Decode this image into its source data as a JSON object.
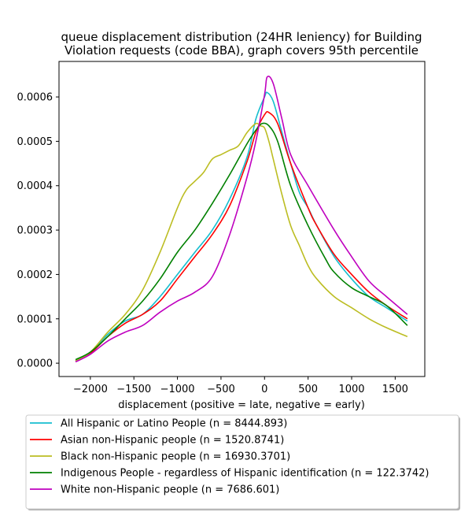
{
  "chart_data": {
    "type": "line",
    "title": "queue displacement distribution (24HR leniency) for Building\nViolation  requests (code BBA), graph covers 95th percentile",
    "xlabel": "displacement (positive = late, negative = early)",
    "ylabel": "",
    "xlim": [
      -2360,
      1840
    ],
    "ylim": [
      -3e-05,
      0.00068
    ],
    "x_ticks": [
      -2000,
      -1500,
      -1000,
      -500,
      0,
      500,
      1000,
      1500
    ],
    "x_tick_labels": [
      "−2000",
      "−1500",
      "−1000",
      "−500",
      "0",
      "500",
      "1000",
      "1500"
    ],
    "y_ticks": [
      0.0,
      0.0001,
      0.0002,
      0.0003,
      0.0004,
      0.0005,
      0.0006
    ],
    "y_tick_labels": [
      "0.0000",
      "0.0001",
      "0.0002",
      "0.0003",
      "0.0004",
      "0.0005",
      "0.0006"
    ],
    "grid": false,
    "legend_position": "bottom",
    "series": [
      {
        "name": "All Hispanic or Latino People (n = 8444.893)",
        "color": "#17becf",
        "points": [
          [
            -2170,
            5e-06
          ],
          [
            -2000,
            2.5e-05
          ],
          [
            -1800,
            6.5e-05
          ],
          [
            -1600,
            9.5e-05
          ],
          [
            -1400,
            0.00011
          ],
          [
            -1200,
            0.00015
          ],
          [
            -1000,
            0.0002
          ],
          [
            -800,
            0.00025
          ],
          [
            -600,
            0.0003
          ],
          [
            -400,
            0.00037
          ],
          [
            -200,
            0.000465
          ],
          [
            -100,
            0.00055
          ],
          [
            0,
            0.0006
          ],
          [
            30,
            0.00061
          ],
          [
            100,
            0.00059
          ],
          [
            200,
            0.00052
          ],
          [
            300,
            0.00045
          ],
          [
            400,
            0.000385
          ],
          [
            500,
            0.00035
          ],
          [
            600,
            0.00031
          ],
          [
            800,
            0.00024
          ],
          [
            1000,
            0.00019
          ],
          [
            1200,
            0.00015
          ],
          [
            1400,
            0.000125
          ],
          [
            1640,
            9.5e-05
          ]
        ]
      },
      {
        "name": "Asian non-Hispanic people (n = 1520.8741)",
        "color": "#ff0000",
        "points": [
          [
            -2170,
            5e-06
          ],
          [
            -2000,
            2.2e-05
          ],
          [
            -1800,
            6e-05
          ],
          [
            -1600,
            9e-05
          ],
          [
            -1400,
            0.00011
          ],
          [
            -1200,
            0.00014
          ],
          [
            -1000,
            0.00019
          ],
          [
            -800,
            0.00024
          ],
          [
            -600,
            0.00029
          ],
          [
            -400,
            0.000355
          ],
          [
            -200,
            0.000455
          ],
          [
            -100,
            0.00052
          ],
          [
            0,
            0.00056
          ],
          [
            50,
            0.000565
          ],
          [
            150,
            0.00054
          ],
          [
            300,
            0.00045
          ],
          [
            500,
            0.00035
          ],
          [
            600,
            0.00031
          ],
          [
            800,
            0.000245
          ],
          [
            1000,
            0.0002
          ],
          [
            1200,
            0.00016
          ],
          [
            1400,
            0.00013
          ],
          [
            1640,
            0.0001
          ]
        ]
      },
      {
        "name": "Black non-Hispanic people (n = 16930.3701)",
        "color": "#bcbd22",
        "points": [
          [
            -2170,
            5e-06
          ],
          [
            -2000,
            2.5e-05
          ],
          [
            -1800,
            7e-05
          ],
          [
            -1600,
            0.00011
          ],
          [
            -1400,
            0.000165
          ],
          [
            -1200,
            0.00025
          ],
          [
            -1000,
            0.00035
          ],
          [
            -900,
            0.00039
          ],
          [
            -800,
            0.00041
          ],
          [
            -700,
            0.00043
          ],
          [
            -600,
            0.00046
          ],
          [
            -500,
            0.00047
          ],
          [
            -400,
            0.00048
          ],
          [
            -300,
            0.00049
          ],
          [
            -200,
            0.00052
          ],
          [
            -100,
            0.00054
          ],
          [
            -50,
            0.000535
          ],
          [
            0,
            0.00053
          ],
          [
            50,
            0.0005
          ],
          [
            100,
            0.00046
          ],
          [
            200,
            0.00038
          ],
          [
            300,
            0.00031
          ],
          [
            400,
            0.000265
          ],
          [
            500,
            0.00022
          ],
          [
            600,
            0.00019
          ],
          [
            800,
            0.00015
          ],
          [
            1000,
            0.000125
          ],
          [
            1200,
            0.0001
          ],
          [
            1400,
            8e-05
          ],
          [
            1640,
            6e-05
          ]
        ]
      },
      {
        "name": "Indigenous People - regardless of Hispanic identification (n = 122.3742)",
        "color": "#008000",
        "points": [
          [
            -2170,
            8e-06
          ],
          [
            -2000,
            2.5e-05
          ],
          [
            -1800,
            6e-05
          ],
          [
            -1600,
            0.0001
          ],
          [
            -1400,
            0.00014
          ],
          [
            -1200,
            0.00019
          ],
          [
            -1000,
            0.00025
          ],
          [
            -800,
            0.0003
          ],
          [
            -600,
            0.00036
          ],
          [
            -400,
            0.000425
          ],
          [
            -200,
            0.000495
          ],
          [
            -100,
            0.000525
          ],
          [
            -30,
            0.00054
          ],
          [
            50,
            0.000535
          ],
          [
            150,
            0.0005
          ],
          [
            300,
            0.0004
          ],
          [
            500,
            0.00031
          ],
          [
            700,
            0.000235
          ],
          [
            800,
            0.000205
          ],
          [
            1000,
            0.00017
          ],
          [
            1200,
            0.00015
          ],
          [
            1400,
            0.00013
          ],
          [
            1640,
            8.5e-05
          ]
        ]
      },
      {
        "name": "White non-Hispanic people (n = 7686.601)",
        "color": "#bf00bf",
        "points": [
          [
            -2170,
            3e-06
          ],
          [
            -2000,
            2e-05
          ],
          [
            -1800,
            5e-05
          ],
          [
            -1600,
            7e-05
          ],
          [
            -1400,
            8.5e-05
          ],
          [
            -1200,
            0.000115
          ],
          [
            -1000,
            0.00014
          ],
          [
            -800,
            0.00016
          ],
          [
            -600,
            0.000195
          ],
          [
            -400,
            0.00029
          ],
          [
            -200,
            0.00042
          ],
          [
            -100,
            0.0005
          ],
          [
            0,
            0.000605
          ],
          [
            30,
            0.000645
          ],
          [
            100,
            0.00063
          ],
          [
            200,
            0.00055
          ],
          [
            300,
            0.00047
          ],
          [
            500,
            0.0004
          ],
          [
            800,
            0.0003
          ],
          [
            1000,
            0.00024
          ],
          [
            1200,
            0.000185
          ],
          [
            1400,
            0.00015
          ],
          [
            1640,
            0.00011
          ]
        ]
      }
    ]
  }
}
